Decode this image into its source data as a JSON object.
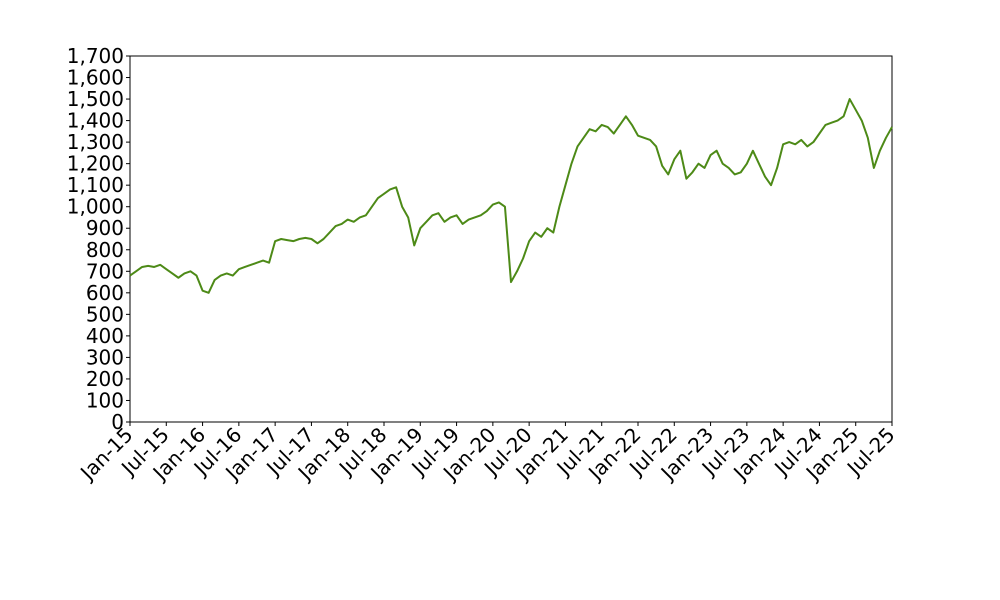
{
  "chart_data": {
    "type": "line",
    "categories": [
      "Jan-15",
      null,
      null,
      null,
      null,
      null,
      "Jul-15",
      null,
      null,
      null,
      null,
      null,
      "Jan-16",
      null,
      null,
      null,
      null,
      null,
      "Jul-16",
      null,
      null,
      null,
      null,
      null,
      "Jan-17",
      null,
      null,
      null,
      null,
      null,
      "Jul-17",
      null,
      null,
      null,
      null,
      null,
      "Jan-18",
      null,
      null,
      null,
      null,
      null,
      "Jul-18",
      null,
      null,
      null,
      null,
      null,
      "Jan-19",
      null,
      null,
      null,
      null,
      null,
      "Jul-19",
      null,
      null,
      null,
      null,
      null,
      "Jan-20",
      null,
      null,
      null,
      null,
      null,
      "Jul-20",
      null,
      null,
      null,
      null,
      null,
      "Jan-21",
      null,
      null,
      null,
      null,
      null,
      "Jul-21",
      null,
      null,
      null,
      null,
      null,
      "Jan-22",
      null,
      null,
      null,
      null,
      null,
      "Jul-22",
      null,
      null,
      null,
      null,
      null,
      "Jan-23",
      null,
      null,
      null,
      null,
      null,
      "Jul-23",
      null,
      null,
      null,
      null,
      null,
      "Jan-24",
      null,
      null,
      null,
      null,
      null,
      "Jul-24",
      null,
      null,
      null,
      null,
      null,
      "Jan-25",
      null,
      null,
      null,
      null,
      null,
      "Jul-25"
    ],
    "values": [
      680,
      700,
      720,
      725,
      720,
      730,
      710,
      690,
      670,
      690,
      700,
      680,
      610,
      600,
      660,
      680,
      690,
      680,
      710,
      720,
      730,
      740,
      750,
      740,
      840,
      850,
      845,
      840,
      850,
      855,
      850,
      830,
      850,
      880,
      910,
      920,
      940,
      930,
      950,
      960,
      1000,
      1040,
      1060,
      1080,
      1090,
      1000,
      950,
      820,
      900,
      930,
      960,
      970,
      930,
      950,
      960,
      920,
      940,
      950,
      960,
      980,
      1010,
      1020,
      1000,
      650,
      700,
      760,
      840,
      880,
      860,
      900,
      880,
      1000,
      1100,
      1200,
      1280,
      1320,
      1360,
      1350,
      1380,
      1370,
      1340,
      1380,
      1420,
      1380,
      1330,
      1320,
      1310,
      1280,
      1190,
      1150,
      1220,
      1260,
      1130,
      1160,
      1200,
      1180,
      1240,
      1260,
      1200,
      1180,
      1150,
      1160,
      1200,
      1260,
      1200,
      1140,
      1100,
      1180,
      1290,
      1300,
      1290,
      1310,
      1280,
      1300,
      1340,
      1380,
      1390,
      1400,
      1420,
      1500,
      1450,
      1400,
      1320,
      1180,
      1260,
      1320,
      1370
    ],
    "color": "#4d8a17",
    "ylim": [
      0,
      1700
    ],
    "yticks": [
      0,
      100,
      200,
      300,
      400,
      500,
      600,
      700,
      800,
      900,
      {
        "value": 1000,
        "label": "1,000"
      },
      {
        "value": 1100,
        "label": "1,100"
      },
      {
        "value": 1200,
        "label": "1,200"
      },
      {
        "value": 1300,
        "label": "1,300"
      },
      {
        "value": 1400,
        "label": "1,400"
      },
      {
        "value": 1500,
        "label": "1,500"
      },
      {
        "value": 1600,
        "label": "1,600"
      },
      {
        "value": 1700,
        "label": "1,700"
      }
    ],
    "grid": false
  }
}
